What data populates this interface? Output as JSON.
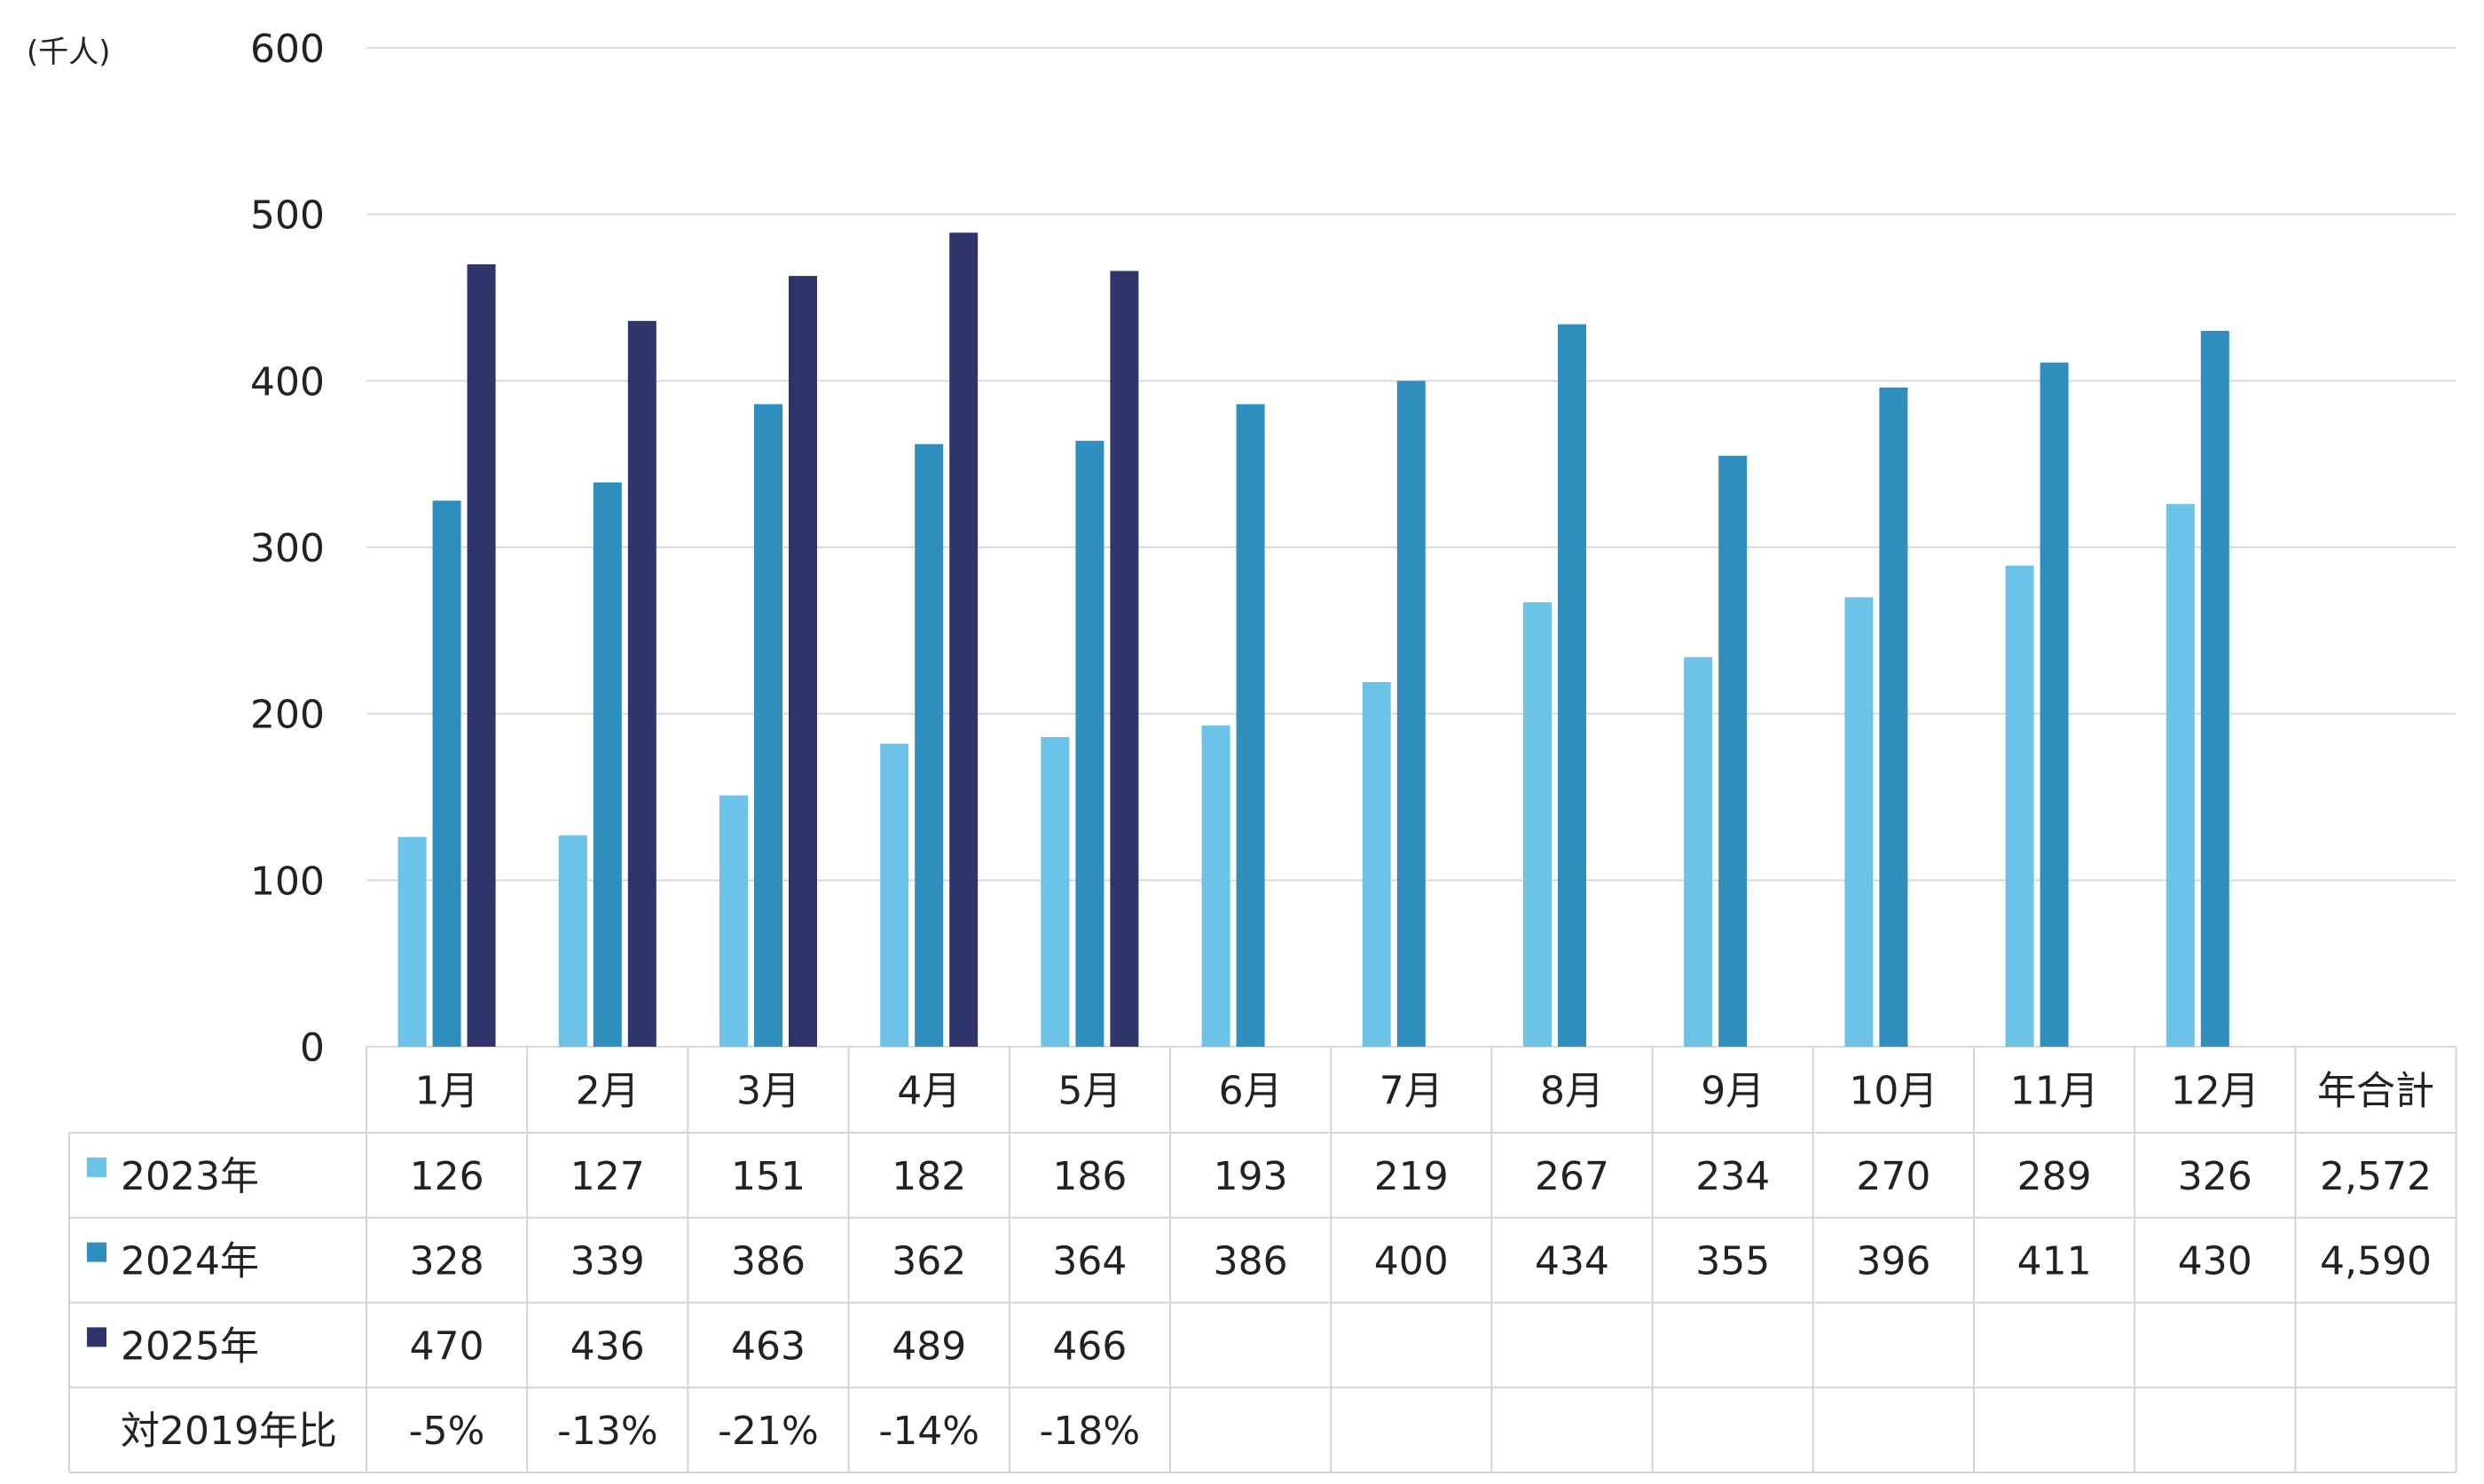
{
  "chart_data": {
    "type": "bar",
    "unit_label": "(千人)",
    "ylim": [
      0,
      600
    ],
    "yticks": [
      "0",
      "100",
      "200",
      "300",
      "400",
      "500",
      "600"
    ],
    "grid": true,
    "legend_placement": "table-left",
    "categories": [
      "1月",
      "2月",
      "3月",
      "4月",
      "5月",
      "6月",
      "7月",
      "8月",
      "9月",
      "10月",
      "11月",
      "12月"
    ],
    "total_label": "年合計",
    "series": [
      {
        "name": "2023年",
        "color": "#6cc3e8",
        "values": [
          126,
          127,
          151,
          182,
          186,
          193,
          219,
          267,
          234,
          270,
          289,
          326
        ],
        "labels": [
          "126",
          "127",
          "151",
          "182",
          "186",
          "193",
          "219",
          "267",
          "234",
          "270",
          "289",
          "326"
        ],
        "total": "2,572"
      },
      {
        "name": "2024年",
        "color": "#2e8ebd",
        "values": [
          328,
          339,
          386,
          362,
          364,
          386,
          400,
          434,
          355,
          396,
          411,
          430
        ],
        "labels": [
          "328",
          "339",
          "386",
          "362",
          "364",
          "386",
          "400",
          "434",
          "355",
          "396",
          "411",
          "430"
        ],
        "total": "4,590"
      },
      {
        "name": "2025年",
        "color": "#2f356b",
        "values": [
          470,
          436,
          463,
          489,
          466,
          null,
          null,
          null,
          null,
          null,
          null,
          null
        ],
        "labels": [
          "470",
          "436",
          "463",
          "489",
          "466",
          "",
          "",
          "",
          "",
          "",
          "",
          ""
        ],
        "total": ""
      }
    ],
    "ratio_row": {
      "label": "対2019年比",
      "values": [
        "-5%",
        "-13%",
        "-21%",
        "-14%",
        "-18%",
        "",
        "",
        "",
        "",
        "",
        "",
        ""
      ]
    }
  }
}
